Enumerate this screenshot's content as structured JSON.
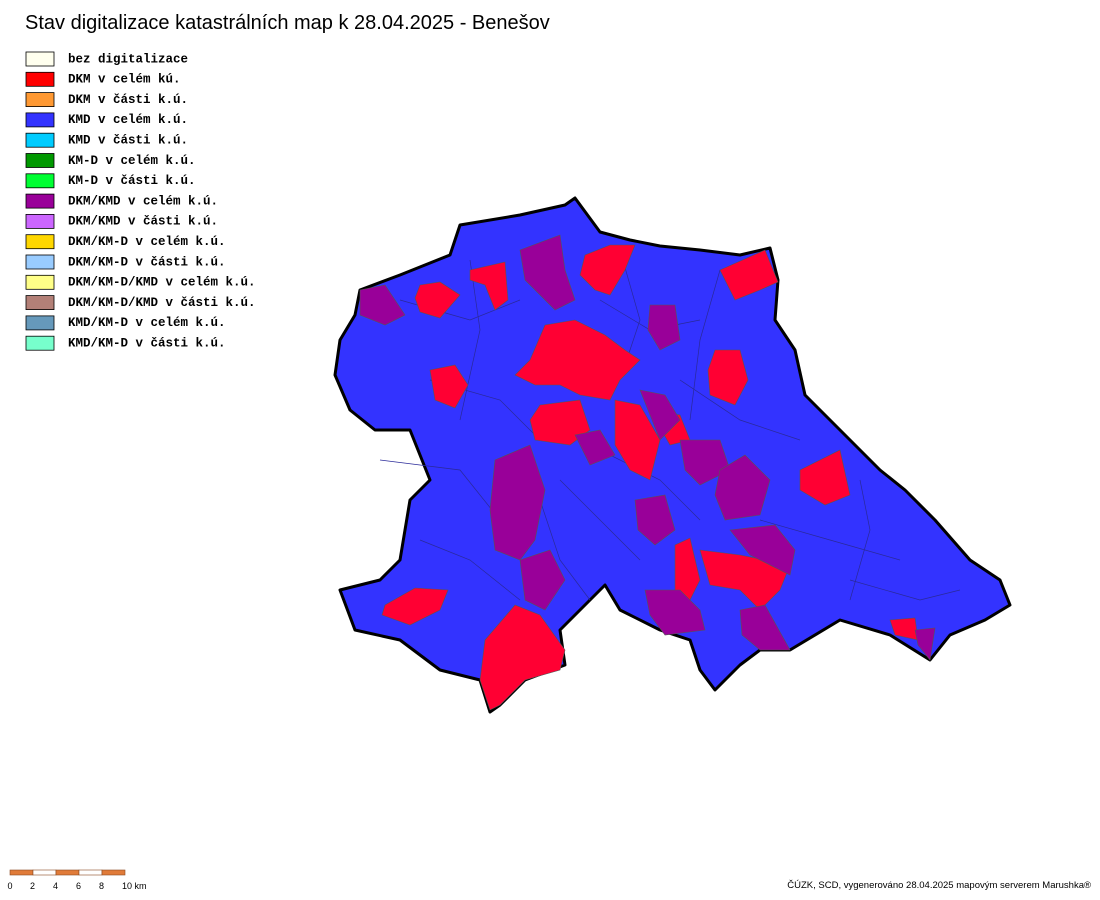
{
  "title": "Stav digitalizace katastrálních map k 28.04.2025 - Benešov",
  "legend": {
    "items": [
      {
        "label": "bez digitalizace",
        "color": "#ffffee"
      },
      {
        "label": "DKM v celém kú.",
        "color": "#ff0000"
      },
      {
        "label": "DKM v části k.ú.",
        "color": "#ff9933"
      },
      {
        "label": "KMD v celém k.ú.",
        "color": "#3333ff"
      },
      {
        "label": "KMD v části k.ú.",
        "color": "#00ccff"
      },
      {
        "label": "KM-D v celém k.ú.",
        "color": "#009900"
      },
      {
        "label": "KM-D v části k.ú.",
        "color": "#00ff33"
      },
      {
        "label": "DKM/KMD v celém k.ú.",
        "color": "#990099"
      },
      {
        "label": "DKM/KMD v části k.ú.",
        "color": "#cc66ff"
      },
      {
        "label": "DKM/KM-D v celém k.ú.",
        "color": "#ffd700"
      },
      {
        "label": "DKM/KM-D v části k.ú.",
        "color": "#99ccff"
      },
      {
        "label": "DKM/KM-D/KMD v celém k.ú.",
        "color": "#ffff88"
      },
      {
        "label": "DKM/KM-D/KMD v části k.ú.",
        "color": "#b38077"
      },
      {
        "label": "KMD/KM-D v celém k.ú.",
        "color": "#6699bb"
      },
      {
        "label": "KMD/KM-D v části k.ú.",
        "color": "#77ffcc"
      }
    ]
  },
  "scale_bar": {
    "labels": [
      "0",
      "2",
      "4",
      "6",
      "8",
      "10 km"
    ]
  },
  "footer": "ČÚZK, SCD, vygenerováno 28.04.2025 mapovým serverem Marushka®"
}
